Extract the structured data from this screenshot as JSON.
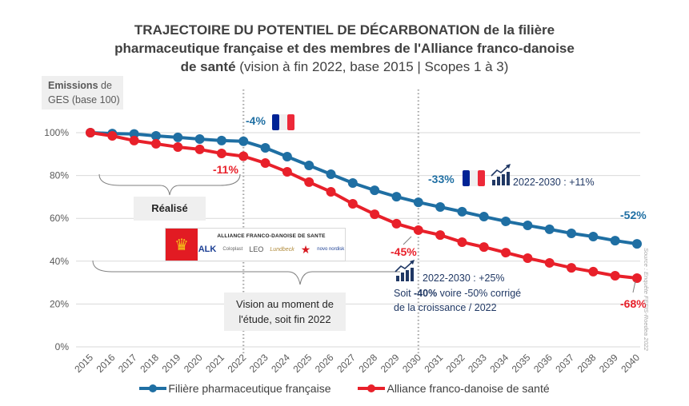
{
  "title": {
    "line1_bold": "TRAJECTOIRE DU POTENTIEL DE DÉCARBONATION",
    "line1_rest": " de la filière",
    "line2_bold": "pharmaceutique française et des membres de l'Alliance franco-danoise",
    "line3_bold": "de santé",
    "line3_rest": " (vision à fin 2022, base 2015 | Scopes 1 à 3)"
  },
  "y_axis_box": {
    "bold": "Emissions",
    "rest": " de",
    "line2": "GES (base 100)"
  },
  "boxes": {
    "realise": "Réalisé",
    "vision_line1": "Vision au moment de",
    "vision_line2": "l'étude, soit fin 2022"
  },
  "annotations": {
    "blue_2022": "-4%",
    "red_2022": "-11%",
    "blue_2030": "-33%",
    "red_2030": "-45%",
    "blue_2040": "-52%",
    "red_2040": "-68%",
    "france_growth": "2022-2030 : +11%",
    "alliance_growth": "2022-2030 : +25%",
    "alliance_note_pre": "Soit ",
    "alliance_note_bold": "-40%",
    "alliance_note_post": " voire -50% corrigé",
    "alliance_note_line2": "de la croissance / 2022"
  },
  "logo_banner": {
    "title": "ALLIANCE FRANCO-DANOISE DE SANTE",
    "logos": [
      "ALK",
      "Coloplast",
      "LEO",
      "Lundbeck",
      "★",
      "novo nordisk"
    ]
  },
  "source": "Source : Enquête FEFIS-Roedea 2022",
  "colors": {
    "blue": "#1f6fa3",
    "red": "#e8202a",
    "grid": "#d9d9d9",
    "flag_blue": "#002395",
    "flag_red": "#ed2939",
    "note": "#203864"
  },
  "chart_data": {
    "type": "line",
    "title": "TRAJECTOIRE DU POTENTIEL DE DÉCARBONATION de la filière pharmaceutique française et des membres de l'Alliance franco-danoise de santé (vision à fin 2022, base 2015 | Scopes 1 à 3)",
    "xlabel": "",
    "ylabel": "Emissions de GES (base 100)",
    "ylim": [
      0,
      100
    ],
    "yticks": [
      "0%",
      "20%",
      "40%",
      "60%",
      "80%",
      "100%"
    ],
    "ytick_values": [
      0,
      20,
      40,
      60,
      80,
      100
    ],
    "x": [
      "2015",
      "2016",
      "2017",
      "2018",
      "2019",
      "2020",
      "2021",
      "2022",
      "2023",
      "2024",
      "2025",
      "2026",
      "2027",
      "2028",
      "2029",
      "2030",
      "2031",
      "2032",
      "2033",
      "2034",
      "2035",
      "2036",
      "2037",
      "2038",
      "2039",
      "2040"
    ],
    "vertical_markers": [
      "2022",
      "2030"
    ],
    "grid": true,
    "legend": "bottom",
    "series": [
      {
        "name": "Filière pharmaceutique française",
        "values": [
          100,
          99.6,
          99.4,
          98.5,
          97.8,
          97,
          96.3,
          96,
          92.9,
          88.8,
          84.7,
          80.6,
          76.5,
          73.1,
          70.1,
          67.5,
          65.3,
          63.1,
          60.8,
          58.6,
          56.7,
          54.9,
          53,
          51.5,
          49.6,
          48.1
        ]
      },
      {
        "name": "Alliance franco-danoise de santé",
        "values": [
          100,
          98.5,
          96.3,
          94.8,
          93.3,
          92.2,
          90.3,
          89,
          85.8,
          81.7,
          76.9,
          72.4,
          66.8,
          61.9,
          57.5,
          54.5,
          52.2,
          48.9,
          46.6,
          44,
          41.4,
          39.2,
          36.9,
          35.1,
          33.2,
          32.1
        ]
      }
    ]
  }
}
